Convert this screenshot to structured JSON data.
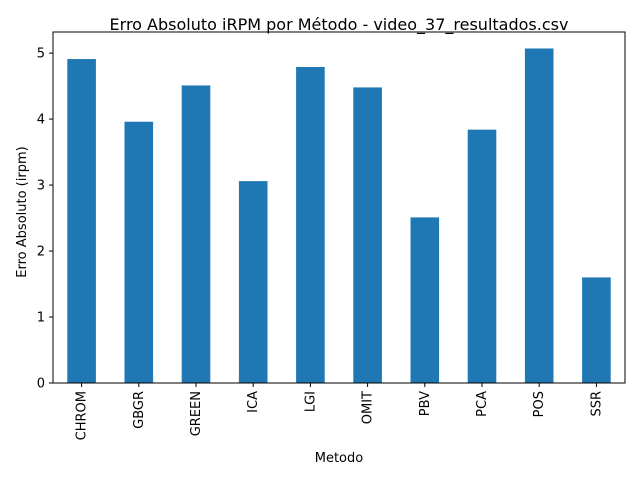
{
  "chart_data": {
    "type": "bar",
    "title": "Erro Absoluto iRPM por Método - video_37_resultados.csv",
    "xlabel": "Metodo",
    "ylabel": "Erro Absoluto (irpm)",
    "categories": [
      "CHROM",
      "GBGR",
      "GREEN",
      "ICA",
      "LGI",
      "OMIT",
      "PBV",
      "PCA",
      "POS",
      "SSR"
    ],
    "values": [
      4.91,
      3.96,
      4.51,
      3.06,
      4.79,
      4.48,
      2.51,
      3.84,
      5.07,
      1.6
    ],
    "ylim": [
      0,
      5.32
    ],
    "yticks": [
      "0",
      "1",
      "2",
      "3",
      "4",
      "5"
    ],
    "grid": false,
    "bar_color": "#1f77b4"
  }
}
